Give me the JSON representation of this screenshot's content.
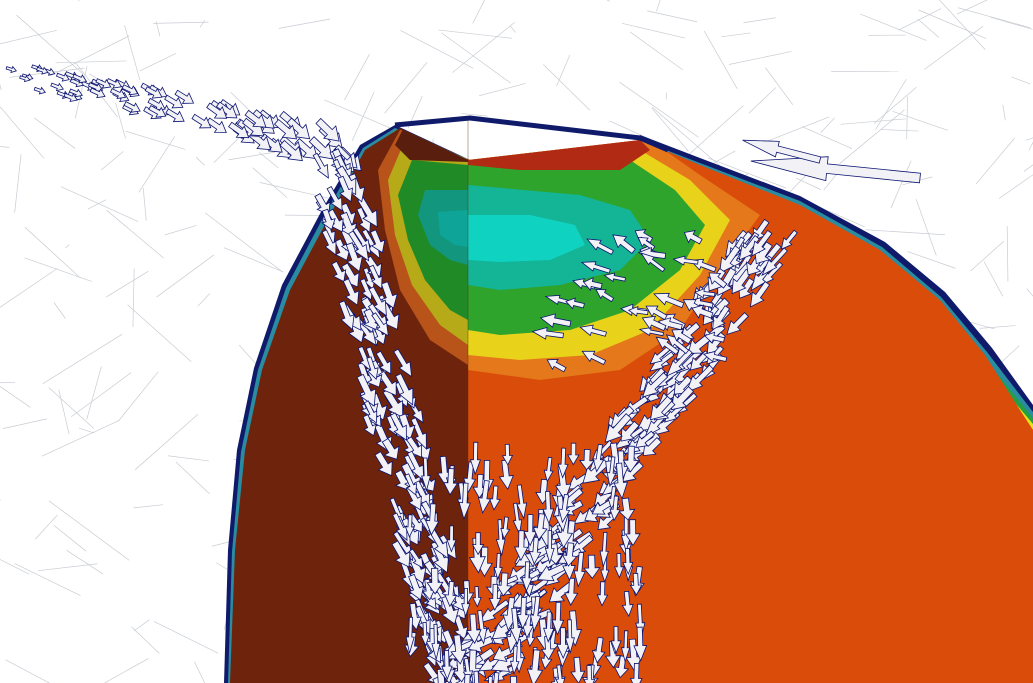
{
  "scene": {
    "description_free": true,
    "colors": {
      "background": "#ffffff",
      "mesh_line": "#c8ccd2",
      "orange_field": "#d94c0a",
      "dark_orange_field": "#6e240c",
      "rim_blue": "#101a6a",
      "rim_teal": "#2a8ca0",
      "rim_green": "#22a046",
      "rim_yellow": "#e8e018",
      "contour_red": "#b02a14",
      "contour_orange": "#e4781a",
      "contour_yellow": "#e8d21a",
      "contour_green": "#2ea42c",
      "contour_teal": "#14b496",
      "contour_cyan": "#10d2c0",
      "arrow_fill": "#f2f2f6",
      "arrow_edge": "#0c1470"
    },
    "glyph_type": "arrow-icon"
  }
}
